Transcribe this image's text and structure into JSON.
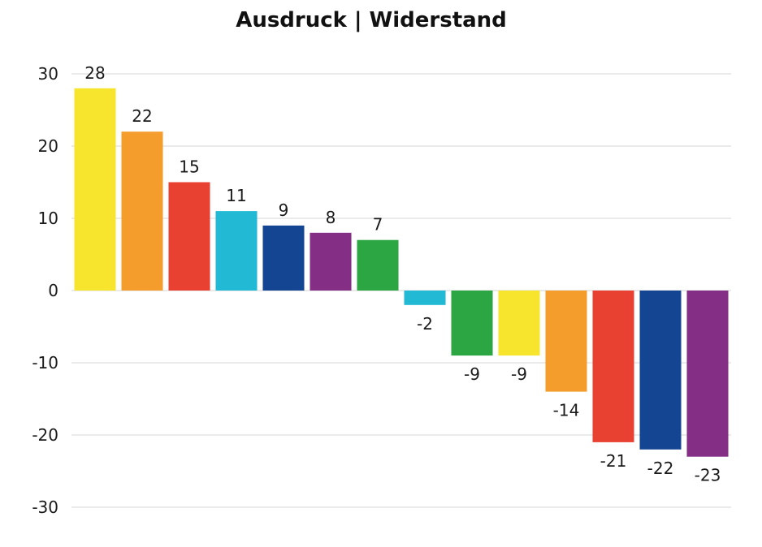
{
  "chart_data": {
    "type": "bar",
    "title": "Ausdruck | Widerstand",
    "xlabel": "",
    "ylabel": "",
    "ylim": [
      -30,
      30
    ],
    "yticks": [
      30,
      20,
      10,
      0,
      -10,
      -20,
      -30
    ],
    "grid": true,
    "values": [
      28,
      22,
      15,
      11,
      9,
      8,
      7,
      -2,
      -9,
      -9,
      -14,
      -21,
      -22,
      -23
    ],
    "colors": [
      "#f7e42c",
      "#f49c2c",
      "#e84132",
      "#22b9d4",
      "#134592",
      "#842e85",
      "#2ba643",
      "#22b9d4",
      "#2ba643",
      "#f7e42c",
      "#f49c2c",
      "#e84132",
      "#134592",
      "#842e85"
    ]
  }
}
